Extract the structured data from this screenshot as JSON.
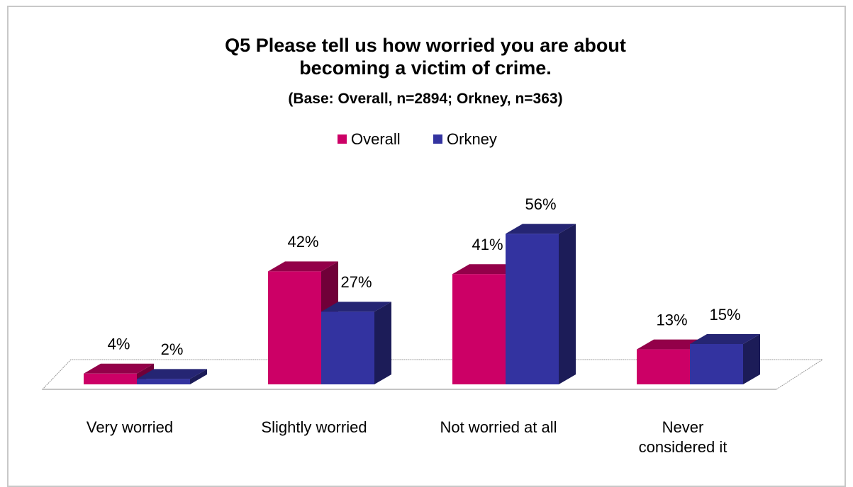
{
  "chart_data": {
    "type": "bar3d",
    "title": "Q5 Please tell us how worried you are about becoming a victim of crime.",
    "subtitle": "(Base: Overall,  n=2894; Orkney, n=363)",
    "categories": [
      "Very worried",
      "Slightly worried",
      "Not worried at all",
      "Never considered it"
    ],
    "series": [
      {
        "name": "Overall",
        "color": "#cc0066",
        "values": [
          4,
          42,
          41,
          13
        ],
        "value_labels": [
          "4%",
          "42%",
          "41%",
          "13%"
        ]
      },
      {
        "name": "Orkney",
        "color": "#3333a0",
        "values": [
          2,
          27,
          56,
          15
        ],
        "value_labels": [
          "2%",
          "27%",
          "56%",
          "15%"
        ]
      }
    ],
    "legend": "top"
  }
}
